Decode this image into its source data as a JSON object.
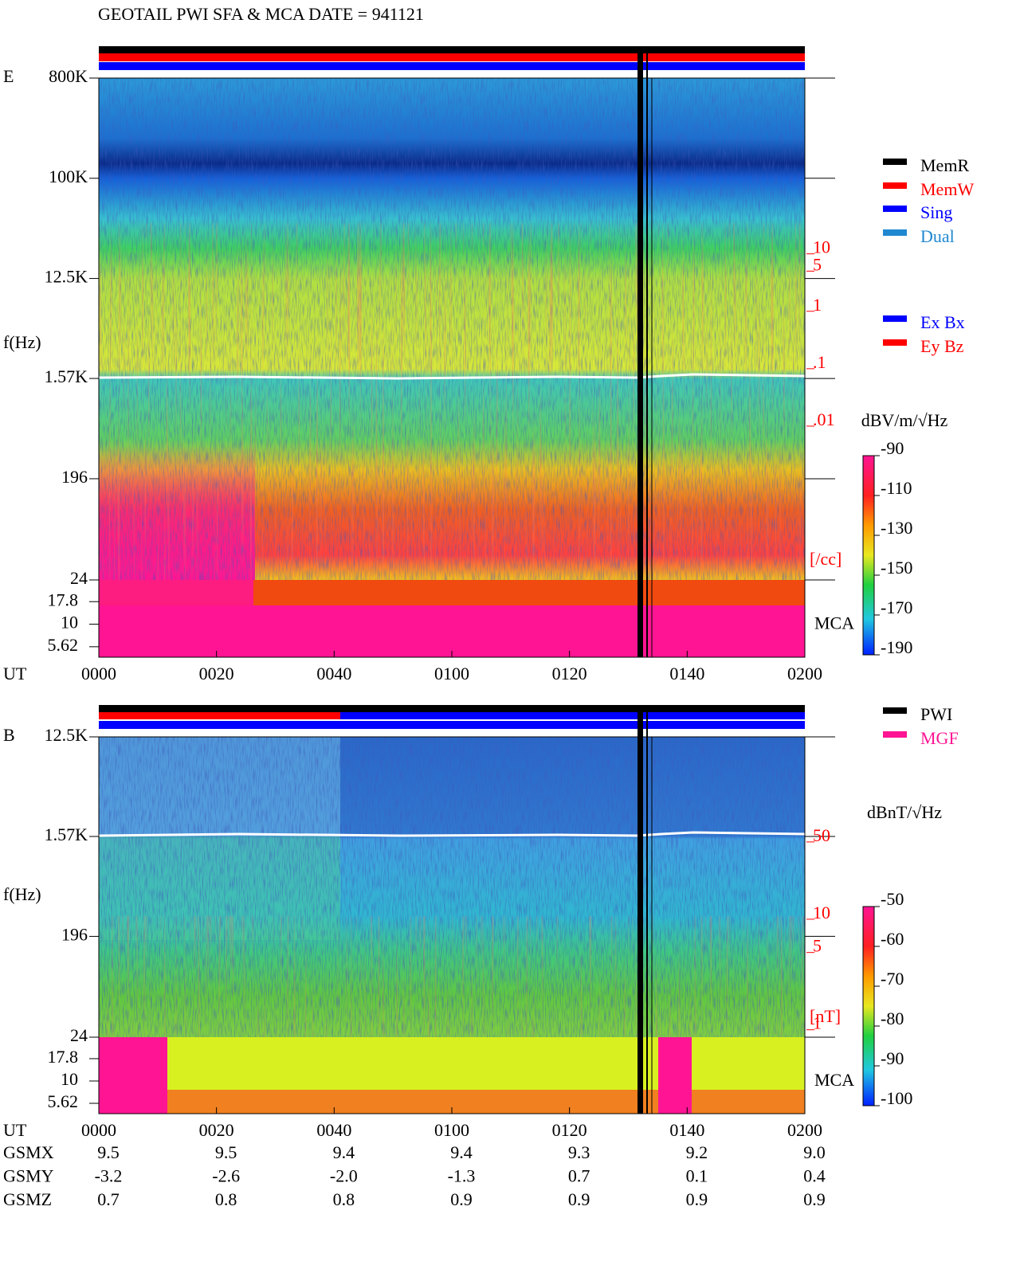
{
  "chart_data": [
    {
      "type": "spectrogram",
      "title": "GEOTAIL  PWI SFA & MCA   DATE = 941121",
      "panel_label": "E",
      "y_label": "f(Hz)",
      "x_label": "UT",
      "xlim": [
        0,
        120
      ],
      "xticks": [
        {
          "value": 0,
          "label": "0000"
        },
        {
          "value": 20,
          "label": "0020"
        },
        {
          "value": 40,
          "label": "0040"
        },
        {
          "value": 60,
          "label": "0100"
        },
        {
          "value": 80,
          "label": "0120"
        },
        {
          "value": 100,
          "label": "0140"
        },
        {
          "value": 120,
          "label": "0200"
        }
      ],
      "log_y": true,
      "ylim": [
        24,
        800000
      ],
      "yticks": [
        {
          "value": 800000,
          "label": "800K"
        },
        {
          "value": 100000,
          "label": "100K"
        },
        {
          "value": 12500,
          "label": "12.5K"
        },
        {
          "value": 1570,
          "label": "1.57K"
        },
        196,
        24
      ],
      "mca_label": "MCA",
      "mca_ylim": [
        4.3,
        31
      ],
      "mca_yticks": [
        17.8,
        10,
        5.62
      ],
      "right_scale": {
        "ylim": [
          2.1e-05,
          11500
        ],
        "ticks": [
          10,
          5,
          1,
          {
            "value": 0.1,
            "label": ".1"
          },
          {
            "value": 0.01,
            "label": ".01"
          }
        ],
        "unit": "[/cc]",
        "color": "#ff0000"
      },
      "colorbar": {
        "unit": "dBV/m/√Hz",
        "clim": [
          -190,
          -90
        ],
        "ticks": [
          -90,
          -110,
          -130,
          -150,
          -170,
          -190
        ]
      },
      "legend": [
        {
          "name": "MemR",
          "color": "#000000"
        },
        {
          "name": "MemW",
          "color": "#ff0000"
        },
        {
          "name": "Sing",
          "color": "#0000ff"
        },
        {
          "name": "Dual",
          "color": "#2088d0"
        },
        {
          "name": "Ex Bx",
          "color": "#0000ff"
        },
        {
          "name": "Ey Bz",
          "color": "#ff0000"
        }
      ]
    },
    {
      "type": "spectrogram",
      "panel_label": "B",
      "y_label": "f(Hz)",
      "x_label": "UT",
      "xlim": [
        0,
        120
      ],
      "xticks": [
        {
          "value": 0,
          "label": "0000"
        },
        {
          "value": 20,
          "label": "0020"
        },
        {
          "value": 40,
          "label": "0040"
        },
        {
          "value": 60,
          "label": "0100"
        },
        {
          "value": 80,
          "label": "0120"
        },
        {
          "value": 100,
          "label": "0140"
        },
        {
          "value": 120,
          "label": "0200"
        }
      ],
      "log_y": true,
      "ylim": [
        24,
        12500
      ],
      "yticks": [
        {
          "value": 12500,
          "label": "12.5K"
        },
        {
          "value": 1570,
          "label": "1.57K"
        },
        196,
        24
      ],
      "mca_label": "MCA",
      "mca_ylim": [
        4.3,
        31
      ],
      "mca_yticks": [
        17.8,
        10,
        5.62
      ],
      "right_scale": {
        "ylim": [
          0.857,
          446
        ],
        "ticks": [
          50,
          10,
          5,
          1
        ],
        "unit": "[nT]",
        "color": "#ff0000"
      },
      "colorbar": {
        "unit": "dBnT/√Hz",
        "clim": [
          -100,
          -50
        ],
        "ticks": [
          -50,
          -60,
          -70,
          -80,
          -90,
          -100
        ]
      },
      "legend": [
        {
          "name": "PWI",
          "color": "#000000"
        },
        {
          "name": "MGF",
          "color": "#ff1493"
        }
      ],
      "position_table": {
        "rows": [
          {
            "label": "GSMX",
            "values": [
              "9.5",
              "9.5",
              "9.4",
              "9.4",
              "9.3",
              "9.2",
              "9.0"
            ]
          },
          {
            "label": "GSMY",
            "values": [
              "-3.2",
              "-2.6",
              "-2.0",
              "-1.3",
              "0.7",
              "0.1",
              "0.4"
            ]
          },
          {
            "label": "GSMZ",
            "values": [
              "0.7",
              "0.8",
              "0.8",
              "0.9",
              "0.9",
              "0.9",
              "0.9"
            ]
          }
        ]
      }
    }
  ]
}
